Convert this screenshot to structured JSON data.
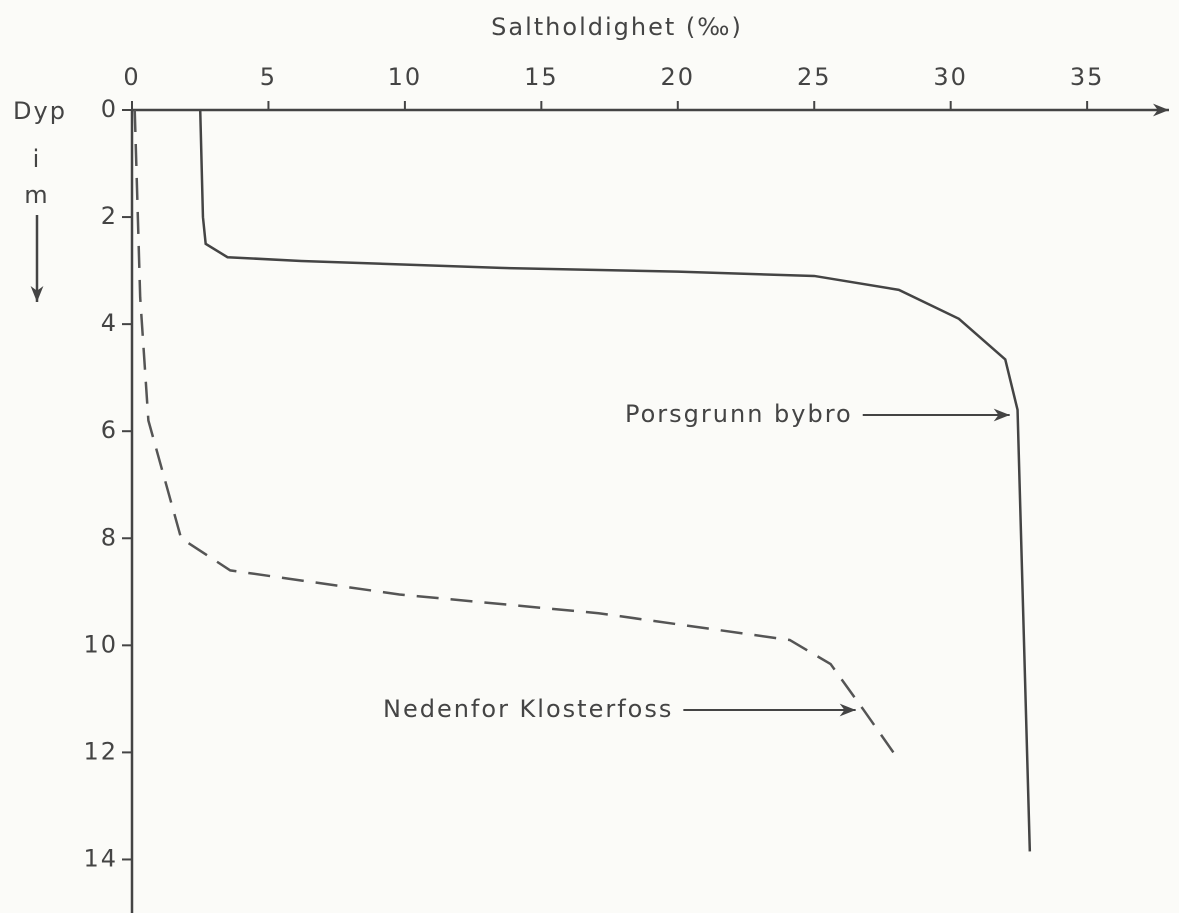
{
  "chart_data": {
    "type": "line",
    "xlabel": "Saltholdighet (‰)",
    "ylabel": [
      "Dyp",
      "i",
      "m"
    ],
    "xlim": [
      0,
      38
    ],
    "xticks": [
      0,
      5,
      10,
      15,
      20,
      25,
      30,
      35
    ],
    "ylim": [
      0,
      15
    ],
    "yticks": [
      0,
      2,
      4,
      6,
      8,
      10,
      12,
      14
    ],
    "y_inverted": true,
    "series": [
      {
        "name": "Porsgrunn bybro",
        "color": "#444444",
        "dash": false,
        "x": [
          2.5,
          2.6,
          2.7,
          3.5,
          6.2,
          13.5,
          20,
          25,
          28.1,
          30.3,
          32,
          32.45,
          32.9
        ],
        "y": [
          0,
          2,
          2.5,
          2.75,
          2.82,
          2.95,
          3.02,
          3.1,
          3.36,
          3.9,
          4.66,
          5.6,
          13.85
        ]
      },
      {
        "name": "Nedenfor Klosterfoss",
        "color": "#555555",
        "dash": true,
        "x": [
          0.1,
          0.3,
          0.6,
          1.2,
          1.8,
          3.6,
          9.8,
          17.1,
          24.1,
          25.6,
          26.8,
          27.9
        ],
        "y": [
          0,
          3.5,
          5.8,
          6.9,
          8.0,
          8.6,
          9.05,
          9.4,
          9.9,
          10.35,
          11.2,
          12.0
        ]
      }
    ]
  }
}
